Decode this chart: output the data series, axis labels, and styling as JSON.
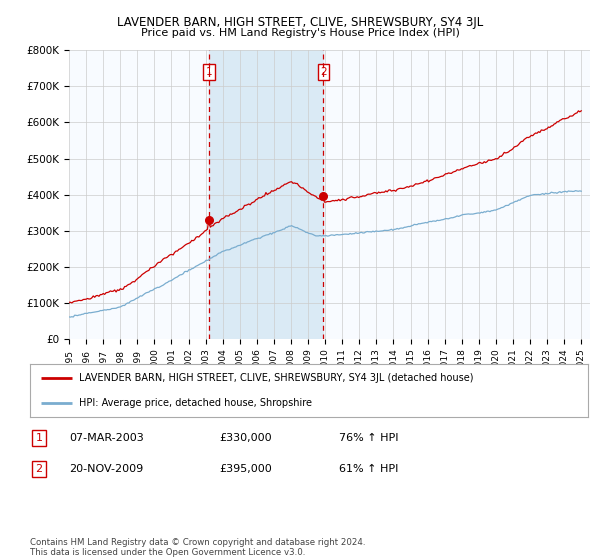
{
  "title": "LAVENDER BARN, HIGH STREET, CLIVE, SHREWSBURY, SY4 3JL",
  "subtitle": "Price paid vs. HM Land Registry's House Price Index (HPI)",
  "ylim": [
    0,
    800000
  ],
  "yticks": [
    0,
    100000,
    200000,
    300000,
    400000,
    500000,
    600000,
    700000,
    800000
  ],
  "ytick_labels": [
    "£0",
    "£100K",
    "£200K",
    "£300K",
    "£400K",
    "£500K",
    "£600K",
    "£700K",
    "£800K"
  ],
  "red_color": "#cc0000",
  "blue_color": "#7aadcf",
  "shade_color": "#daeaf5",
  "grid_color": "#cccccc",
  "bg_color": "#f8fbff",
  "marker1_x": 2003.2,
  "marker1_y": 330000,
  "marker2_x": 2009.9,
  "marker2_y": 395000,
  "xlim_left": 1995.0,
  "xlim_right": 2025.5,
  "legend_label_red": "LAVENDER BARN, HIGH STREET, CLIVE, SHREWSBURY, SY4 3JL (detached house)",
  "legend_label_blue": "HPI: Average price, detached house, Shropshire",
  "table_row1": [
    "1",
    "07-MAR-2003",
    "£330,000",
    "76% ↑ HPI"
  ],
  "table_row2": [
    "2",
    "20-NOV-2009",
    "£395,000",
    "61% ↑ HPI"
  ],
  "footer": "Contains HM Land Registry data © Crown copyright and database right 2024.\nThis data is licensed under the Open Government Licence v3.0."
}
